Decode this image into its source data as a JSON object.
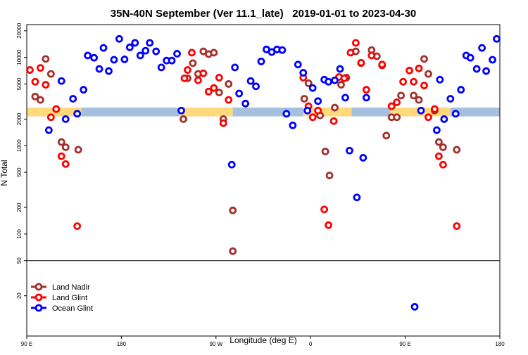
{
  "chart_data": {
    "type": "scatter",
    "title": "35N-40N September (Ver 11.1_late)   2019-01-01 to 2023-04-30",
    "xlabel": "Longitude (deg E)",
    "ylabel": "N Total",
    "xlim": [
      90,
      540
    ],
    "xticks": [
      {
        "value": 90,
        "label": "90 E"
      },
      180,
      {
        "value": 270,
        "label": "90 W"
      },
      {
        "value": 360,
        "label": "0"
      },
      {
        "value": 450,
        "label": "90 E"
      },
      {
        "value": 540,
        "label": "180"
      }
    ],
    "ylim": [
      7,
      23500
    ],
    "log_y": true,
    "yticks": [
      20,
      50,
      100,
      200,
      500,
      1000,
      2000,
      5000,
      10000,
      20000
    ],
    "hline": 50,
    "legend": "lower left",
    "band": {
      "range": [
        2150,
        2700
      ],
      "segments": [
        {
          "x": [
            90,
            142
          ],
          "color": "#ffd97a"
        },
        {
          "x": [
            142,
            235
          ],
          "color": "#a5bfdf"
        },
        {
          "x": [
            235,
            286
          ],
          "color": "#ffd97a"
        },
        {
          "x": [
            286,
            353
          ],
          "color": "#a5bfdf"
        },
        {
          "x": [
            353,
            399
          ],
          "color": "#ffd97a"
        },
        {
          "x": [
            399,
            436
          ],
          "color": "#a5bfdf"
        },
        {
          "x": [
            436,
            493
          ],
          "color": "#ffd97a"
        },
        {
          "x": [
            493,
            540
          ],
          "color": "#a5bfdf"
        }
      ]
    },
    "series": [
      {
        "name": "Land Nadir",
        "color": "#a3302c",
        "x": [
          98,
          103,
          108,
          113,
          118,
          123,
          127,
          139,
          239,
          243,
          248,
          253,
          258,
          263,
          268,
          273,
          277,
          282,
          286,
          286,
          354,
          358,
          369,
          374,
          378,
          383,
          389,
          394,
          403,
          408,
          418,
          423,
          428,
          432,
          437,
          442,
          446,
          458,
          463,
          468,
          472,
          478,
          482,
          486,
          499
        ],
        "values": [
          3600,
          3300,
          9600,
          6500,
          2600,
          1100,
          960,
          900,
          2000,
          5800,
          8600,
          6500,
          11700,
          10900,
          11300,
          4000,
          2000,
          5000,
          185,
          64,
          3400,
          5100,
          2200,
          860,
          460,
          2700,
          4900,
          5900,
          11700,
          8600,
          12100,
          10300,
          8100,
          1300,
          2100,
          2100,
          3700,
          3700,
          3300,
          9600,
          6500,
          2500,
          1100,
          960,
          900
        ]
      },
      {
        "name": "Land Glint",
        "color": "#ff0000",
        "x": [
          93,
          98,
          103,
          108,
          113,
          118,
          123,
          127,
          138,
          240,
          243,
          247,
          253,
          258,
          263,
          268,
          273,
          277,
          282,
          353,
          358,
          362,
          367,
          373,
          377,
          382,
          387,
          392,
          398,
          403,
          408,
          413,
          418,
          428,
          437,
          442,
          448,
          454,
          458,
          463,
          468,
          472,
          478,
          482,
          486,
          499
        ],
        "values": [
          7200,
          5300,
          7600,
          4900,
          2100,
          2600,
          760,
          620,
          123,
          5800,
          7200,
          11300,
          5500,
          6600,
          4100,
          4500,
          5900,
          1800,
          3300,
          5900,
          2800,
          2100,
          2500,
          190,
          126,
          1900,
          6000,
          5800,
          11300,
          14600,
          8700,
          4300,
          10500,
          8300,
          2800,
          3100,
          5300,
          7100,
          5300,
          7500,
          4800,
          2100,
          2600,
          760,
          610,
          123
        ]
      },
      {
        "name": "Ocean Glint",
        "color": "#0000ff",
        "x": [
          111,
          123,
          127,
          134,
          138,
          144,
          148,
          154,
          159,
          163,
          168,
          173,
          178,
          183,
          188,
          193,
          198,
          203,
          207,
          213,
          218,
          223,
          228,
          233,
          237,
          285,
          288,
          292,
          298,
          303,
          308,
          313,
          318,
          323,
          328,
          333,
          337,
          343,
          348,
          353,
          357,
          362,
          367,
          373,
          377,
          383,
          388,
          393,
          397,
          404,
          410,
          413,
          459,
          465,
          480,
          483,
          487,
          493,
          498,
          503,
          508,
          512,
          518,
          523,
          527,
          533,
          537
        ],
        "values": [
          1500,
          5400,
          2000,
          3400,
          2300,
          4300,
          10500,
          9900,
          7400,
          12800,
          7000,
          9400,
          16200,
          9500,
          13000,
          14600,
          10500,
          11900,
          14600,
          11700,
          7700,
          9200,
          9200,
          11000,
          2500,
          610,
          7700,
          3900,
          3000,
          5400,
          4700,
          9000,
          12300,
          11500,
          12300,
          12100,
          2300,
          1700,
          8300,
          6700,
          2500,
          4500,
          3200,
          5600,
          5300,
          5500,
          7400,
          3500,
          880,
          260,
          730,
          3500,
          15,
          2500,
          1500,
          5600,
          2000,
          3400,
          2300,
          4300,
          10500,
          9900,
          7400,
          12800,
          7000,
          9400,
          16200
        ]
      }
    ]
  }
}
